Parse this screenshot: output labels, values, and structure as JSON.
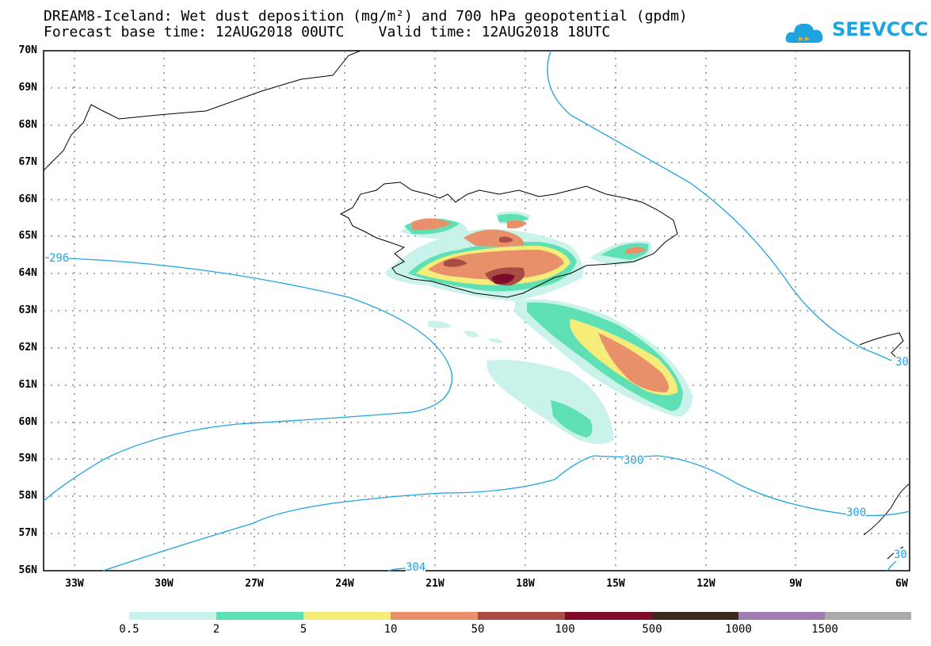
{
  "title_line1": "DREAM8-Iceland: Wet dust deposition (mg/m²) and 700 hPa geopotential (gpdm)",
  "title_line2": "Forecast base time: 12AUG2018 00UTC    Valid time: 12AUG2018 18UTC",
  "logo_text": "SEEVCCC",
  "lat_labels": [
    "70N",
    "69N",
    "68N",
    "67N",
    "66N",
    "65N",
    "64N",
    "63N",
    "62N",
    "61N",
    "60N",
    "59N",
    "58N",
    "57N",
    "56N"
  ],
  "lon_labels": [
    "33W",
    "30W",
    "27W",
    "24W",
    "21W",
    "18W",
    "15W",
    "12W",
    "9W",
    "6W"
  ],
  "contour_labels": [
    "296",
    "300",
    "304",
    "300",
    "30",
    "30",
    "30"
  ],
  "legend": {
    "labels": [
      "0.5",
      "2",
      "5",
      "10",
      "50",
      "100",
      "500",
      "1000",
      "1500"
    ],
    "colors": [
      "#c8f2ea",
      "#5fe0b4",
      "#f5ec7a",
      "#e8906a",
      "#a84c44",
      "#7e0a2c",
      "#3a2a1c",
      "#a07cb0",
      "#aaaaaa"
    ]
  },
  "colors": {
    "contour": "#1fa3e0",
    "coast": "#000000"
  }
}
